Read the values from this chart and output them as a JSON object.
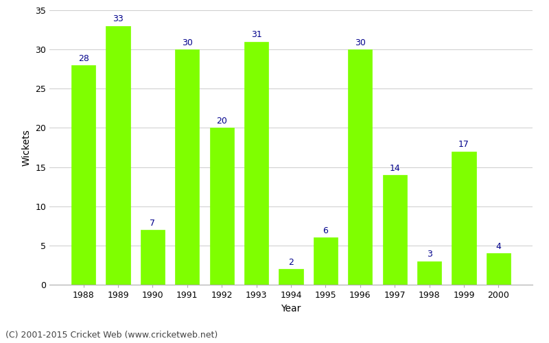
{
  "years": [
    1988,
    1989,
    1990,
    1991,
    1992,
    1993,
    1994,
    1995,
    1996,
    1997,
    1998,
    1999,
    2000
  ],
  "wickets": [
    28,
    33,
    7,
    30,
    20,
    31,
    2,
    6,
    30,
    14,
    3,
    17,
    4
  ],
  "bar_color": "#7fff00",
  "bar_edge_color": "#7fff00",
  "title": "",
  "xlabel": "Year",
  "ylabel": "Wickets",
  "ylim": [
    0,
    35
  ],
  "yticks": [
    0,
    5,
    10,
    15,
    20,
    25,
    30,
    35
  ],
  "label_color": "#00008b",
  "label_fontsize": 9,
  "axis_label_fontsize": 10,
  "tick_fontsize": 9,
  "background_color": "#ffffff",
  "grid_color": "#cccccc",
  "footer_text": "(C) 2001-2015 Cricket Web (www.cricketweb.net)",
  "footer_fontsize": 9,
  "footer_color": "#444444"
}
